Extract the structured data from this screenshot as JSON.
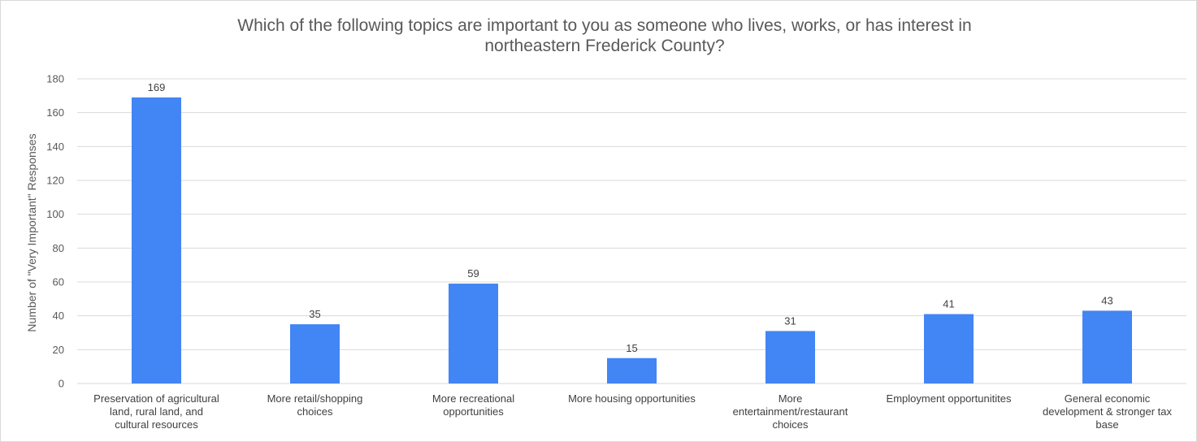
{
  "chart_data": {
    "type": "bar",
    "title_lines": [
      "Which of the following topics are important to you as someone who lives, works, or has interest in",
      "northeastern Frederick County?"
    ],
    "ylabel": "Number of \"Very Important\" Responses",
    "xlabel": "",
    "ylim": [
      0,
      180
    ],
    "yticks": [
      0,
      20,
      40,
      60,
      80,
      100,
      120,
      140,
      160,
      180
    ],
    "grid": true,
    "legend": "none",
    "bar_color": "#4285f4",
    "categories": [
      [
        "Preservation of agricultural",
        "land, rural land, and",
        "cultural resources"
      ],
      [
        "More retail/shopping",
        "choices"
      ],
      [
        "More recreational",
        "opportunities"
      ],
      [
        "More housing opportunities"
      ],
      [
        "More",
        "entertainment/restaurant",
        "choices"
      ],
      [
        "Employment opportunitites"
      ],
      [
        "General economic",
        "development & stronger tax",
        "base"
      ]
    ],
    "values": [
      169,
      35,
      59,
      15,
      31,
      41,
      43
    ]
  }
}
